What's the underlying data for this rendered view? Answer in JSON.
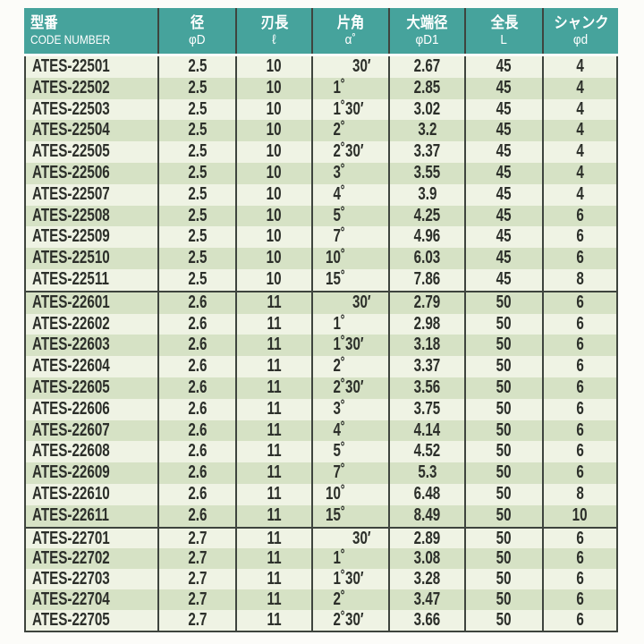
{
  "colors": {
    "header_bg": "#46A39C",
    "header_text": "#FFFFFF",
    "row_light": "#EFF3E4",
    "row_dark": "#D6E2C5",
    "border": "#3E443E",
    "body_text": "#2C2F2A",
    "page_bg": "#FCFCF9"
  },
  "chart_data": {
    "type": "table",
    "columns": [
      {
        "jp": "型番",
        "sub": "CODE NUMBER"
      },
      {
        "jp": "径",
        "sub": "φD"
      },
      {
        "jp": "刃長",
        "sub": "ℓ"
      },
      {
        "jp": "片角",
        "sub": "α°"
      },
      {
        "jp": "大端径",
        "sub": "φD1"
      },
      {
        "jp": "全長",
        "sub": "L"
      },
      {
        "jp": "シャンク",
        "sub": "φd"
      }
    ],
    "groups": [
      {
        "rows": [
          [
            "ATES-22501",
            "2.5",
            "10",
            "30′",
            "2.67",
            "45",
            "4"
          ],
          [
            "ATES-22502",
            "2.5",
            "10",
            "1°",
            "2.85",
            "45",
            "4"
          ],
          [
            "ATES-22503",
            "2.5",
            "10",
            "1°30′",
            "3.02",
            "45",
            "4"
          ],
          [
            "ATES-22504",
            "2.5",
            "10",
            "2°",
            "3.2",
            "45",
            "4"
          ],
          [
            "ATES-22505",
            "2.5",
            "10",
            "2°30′",
            "3.37",
            "45",
            "4"
          ],
          [
            "ATES-22506",
            "2.5",
            "10",
            "3°",
            "3.55",
            "45",
            "4"
          ],
          [
            "ATES-22507",
            "2.5",
            "10",
            "4°",
            "3.9",
            "45",
            "4"
          ],
          [
            "ATES-22508",
            "2.5",
            "10",
            "5°",
            "4.25",
            "45",
            "6"
          ],
          [
            "ATES-22509",
            "2.5",
            "10",
            "7°",
            "4.96",
            "45",
            "6"
          ],
          [
            "ATES-22510",
            "2.5",
            "10",
            "10°",
            "6.03",
            "45",
            "6"
          ],
          [
            "ATES-22511",
            "2.5",
            "10",
            "15°",
            "7.86",
            "45",
            "8"
          ]
        ]
      },
      {
        "rows": [
          [
            "ATES-22601",
            "2.6",
            "11",
            "30′",
            "2.79",
            "50",
            "6"
          ],
          [
            "ATES-22602",
            "2.6",
            "11",
            "1°",
            "2.98",
            "50",
            "6"
          ],
          [
            "ATES-22603",
            "2.6",
            "11",
            "1°30′",
            "3.18",
            "50",
            "6"
          ],
          [
            "ATES-22604",
            "2.6",
            "11",
            "2°",
            "3.37",
            "50",
            "6"
          ],
          [
            "ATES-22605",
            "2.6",
            "11",
            "2°30′",
            "3.56",
            "50",
            "6"
          ],
          [
            "ATES-22606",
            "2.6",
            "11",
            "3°",
            "3.75",
            "50",
            "6"
          ],
          [
            "ATES-22607",
            "2.6",
            "11",
            "4°",
            "4.14",
            "50",
            "6"
          ],
          [
            "ATES-22608",
            "2.6",
            "11",
            "5°",
            "4.52",
            "50",
            "6"
          ],
          [
            "ATES-22609",
            "2.6",
            "11",
            "7°",
            "5.3",
            "50",
            "6"
          ],
          [
            "ATES-22610",
            "2.6",
            "11",
            "10°",
            "6.48",
            "50",
            "8"
          ],
          [
            "ATES-22611",
            "2.6",
            "11",
            "15°",
            "8.49",
            "50",
            "10"
          ]
        ]
      },
      {
        "rows": [
          [
            "ATES-22701",
            "2.7",
            "11",
            "30′",
            "2.89",
            "50",
            "6"
          ],
          [
            "ATES-22702",
            "2.7",
            "11",
            "1°",
            "3.08",
            "50",
            "6"
          ],
          [
            "ATES-22703",
            "2.7",
            "11",
            "1°30′",
            "3.28",
            "50",
            "6"
          ],
          [
            "ATES-22704",
            "2.7",
            "11",
            "2°",
            "3.47",
            "50",
            "6"
          ],
          [
            "ATES-22705",
            "2.7",
            "11",
            "2°30′",
            "3.66",
            "50",
            "6"
          ]
        ]
      }
    ]
  }
}
